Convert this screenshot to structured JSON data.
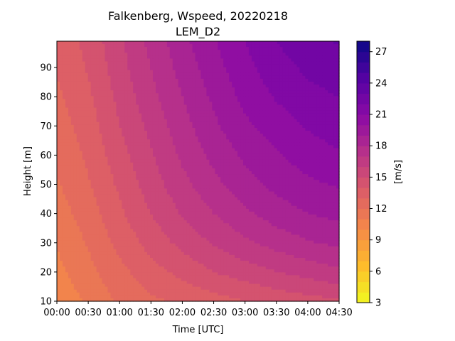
{
  "chart_data": {
    "type": "heatmap",
    "title": "Falkenberg, Wspeed, 20220218",
    "subtitle": "LEM_D2",
    "xlabel": "Time [UTC]",
    "ylabel": "Height [m]",
    "colorbar_label": "[m/s]",
    "x_ticks": [
      "00:00",
      "00:30",
      "01:00",
      "01:30",
      "02:00",
      "02:30",
      "03:00",
      "03:30",
      "04:00",
      "04:30"
    ],
    "y_ticks": [
      10,
      20,
      30,
      40,
      50,
      60,
      70,
      80,
      90
    ],
    "x_hours": [
      0,
      0.5,
      1,
      1.5,
      2,
      2.5,
      3,
      3.5,
      4,
      4.5
    ],
    "height_range": [
      10,
      99
    ],
    "colorbar_ticks": [
      3,
      6,
      9,
      12,
      15,
      18,
      21,
      24,
      27
    ],
    "colorbar_range": [
      3,
      28
    ],
    "colorbar_step": 1,
    "wind_speed": {
      "heights": [
        10,
        20,
        30,
        40,
        50,
        60,
        70,
        80,
        90,
        99
      ],
      "times_hours": [
        0,
        0.5,
        1,
        1.5,
        2,
        2.5,
        3,
        3.5,
        4,
        4.5
      ],
      "values": [
        [
          10.2,
          11.2,
          12.2,
          12.8,
          13.2,
          13.6,
          14.0,
          14.3,
          14.6,
          14.9
        ],
        [
          10.7,
          11.7,
          12.7,
          13.6,
          14.3,
          15.0,
          15.5,
          16.0,
          16.4,
          16.8
        ],
        [
          11.1,
          12.1,
          13.3,
          14.4,
          15.3,
          16.1,
          16.8,
          17.4,
          17.9,
          18.2
        ],
        [
          11.5,
          12.5,
          13.8,
          15.0,
          16.1,
          17.0,
          17.8,
          18.5,
          19.0,
          19.3
        ],
        [
          11.9,
          12.9,
          14.2,
          15.5,
          16.7,
          17.7,
          18.6,
          19.3,
          19.8,
          20.1
        ],
        [
          12.2,
          13.2,
          14.6,
          15.9,
          17.2,
          18.3,
          19.2,
          19.9,
          20.5,
          20.9
        ],
        [
          12.5,
          13.5,
          15.0,
          16.3,
          17.6,
          18.8,
          19.8,
          20.5,
          21.1,
          21.5
        ],
        [
          12.8,
          13.8,
          15.3,
          16.7,
          18.0,
          19.2,
          20.3,
          21.1,
          21.7,
          22.0
        ],
        [
          13.1,
          14.1,
          15.6,
          17.0,
          18.4,
          19.6,
          20.7,
          21.6,
          22.2,
          22.6
        ],
        [
          13.3,
          14.3,
          15.8,
          17.3,
          18.7,
          19.9,
          21.0,
          22.0,
          22.7,
          23.1
        ]
      ]
    },
    "colormap": "plasma_r",
    "grid": false
  }
}
